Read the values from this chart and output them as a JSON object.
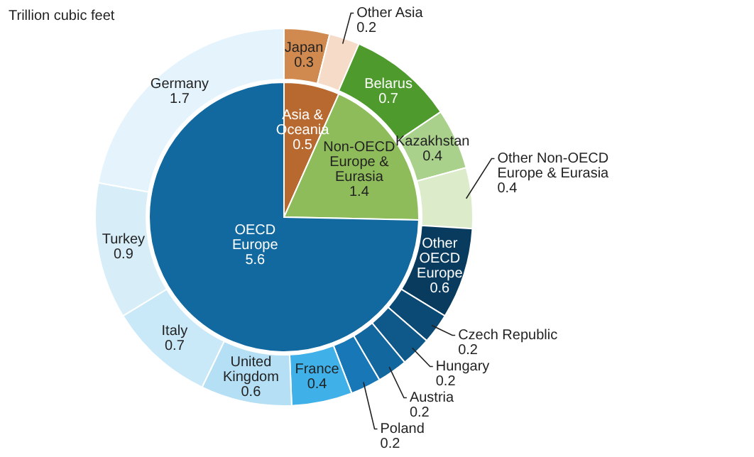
{
  "chart_data": [
    {
      "type": "pie",
      "title": "Trillion cubic feet",
      "categories": [
        "Asia & Oceania",
        "Non-OECD Europe & Eurasia",
        "OECD Europe"
      ],
      "values": [
        0.5,
        1.4,
        5.6
      ],
      "colors": [
        "#b8692f",
        "#8fbc5a",
        "#11699f"
      ],
      "data_labels": true
    },
    {
      "type": "donut",
      "categories": [
        "Japan",
        "Other Asia",
        "Belarus",
        "Kazakhstan",
        "Other Non-OECD Europe & Eurasia",
        "Other OECD Europe",
        "Czech Republic",
        "Hungary",
        "Austria",
        "Poland",
        "France",
        "United Kingdom",
        "Italy",
        "Turkey",
        "Germany"
      ],
      "values": [
        0.3,
        0.2,
        0.7,
        0.4,
        0.4,
        0.6,
        0.2,
        0.2,
        0.2,
        0.2,
        0.4,
        0.6,
        0.7,
        0.9,
        1.7
      ],
      "colors": [
        "#d08a4f",
        "#f6dcc8",
        "#4e9a2c",
        "#a9d18c",
        "#dcecca",
        "#083b5e",
        "#0b4a75",
        "#0e588a",
        "#12679f",
        "#1877b6",
        "#3fb0e8",
        "#b4dff4",
        "#c9e9f8",
        "#d7eef9",
        "#e5f4fc"
      ],
      "data_labels": true
    }
  ]
}
